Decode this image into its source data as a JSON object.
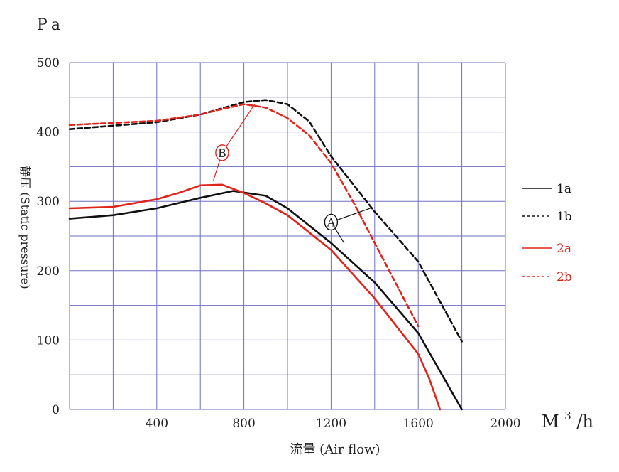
{
  "chart_data": {
    "type": "line",
    "y_unit": "Pa",
    "ylabel": "静压 (Static pressure)",
    "xlabel": "流量 (Air flow)",
    "x_unit": "M3/h",
    "x_unit_text": {
      "base": "M",
      "sup": "3",
      "rest": "/h"
    },
    "xlim": [
      0,
      2000
    ],
    "ylim": [
      0,
      500
    ],
    "x_ticks": [
      400,
      800,
      1200,
      1600,
      2000
    ],
    "y_ticks": [
      0,
      100,
      200,
      300,
      400,
      500
    ],
    "grid": true,
    "legend_position": "right",
    "series": [
      {
        "name": "1a",
        "color": "#111111",
        "dash": "solid",
        "x": [
          0,
          200,
          400,
          600,
          750,
          900,
          1000,
          1200,
          1400,
          1600,
          1700,
          1800
        ],
        "y": [
          275,
          280,
          290,
          305,
          315,
          308,
          290,
          240,
          183,
          110,
          55,
          0
        ]
      },
      {
        "name": "1b",
        "color": "#111111",
        "dash": "dashed",
        "x": [
          0,
          200,
          400,
          600,
          800,
          900,
          1000,
          1100,
          1200,
          1400,
          1600,
          1800
        ],
        "y": [
          404,
          409,
          414,
          425,
          443,
          446,
          440,
          415,
          365,
          285,
          213,
          98
        ]
      },
      {
        "name": "2a",
        "color": "#e0241b",
        "dash": "solid",
        "x": [
          0,
          200,
          400,
          500,
          600,
          700,
          800,
          900,
          1000,
          1200,
          1400,
          1600,
          1650,
          1700
        ],
        "y": [
          290,
          292,
          303,
          312,
          323,
          324,
          312,
          297,
          280,
          230,
          160,
          80,
          45,
          0
        ]
      },
      {
        "name": "2b",
        "color": "#e0241b",
        "dash": "dashed",
        "x": [
          0,
          200,
          400,
          600,
          700,
          800,
          900,
          1000,
          1100,
          1200,
          1300,
          1400,
          1500,
          1600
        ],
        "y": [
          410,
          413,
          416,
          425,
          433,
          440,
          435,
          420,
          395,
          355,
          300,
          240,
          180,
          120
        ]
      }
    ],
    "annotations": [
      {
        "label": "A",
        "color": "#111111",
        "x": 1200,
        "y": 270,
        "leaders": [
          [
            1380,
            290
          ],
          [
            1260,
            240
          ]
        ]
      },
      {
        "label": "B",
        "color": "#e0241b",
        "x": 700,
        "y": 370,
        "leaders": [
          [
            850,
            440
          ],
          [
            660,
            330
          ]
        ]
      }
    ]
  }
}
